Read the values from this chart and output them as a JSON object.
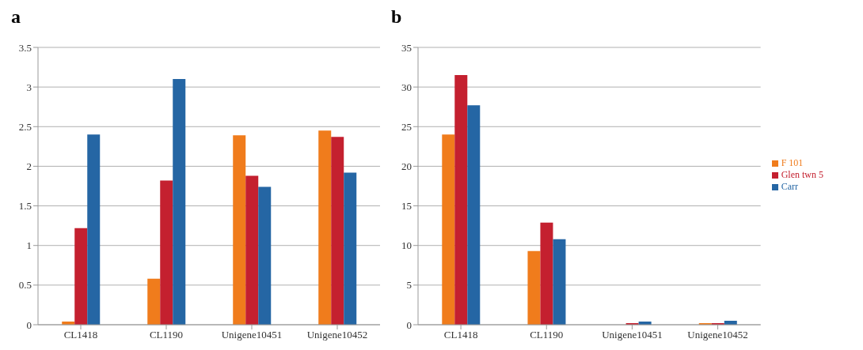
{
  "chart_data": [
    {
      "type": "bar",
      "title": "a",
      "categories": [
        "CL1418",
        "CL1190",
        "Unigene10451",
        "Unigene10452"
      ],
      "series": [
        {
          "color": "#f07c1c",
          "values": [
            0.04,
            0.58,
            2.39,
            2.45
          ]
        },
        {
          "color": "#c4202f",
          "values": [
            1.22,
            1.82,
            1.88,
            2.37
          ]
        },
        {
          "color": "#2566a4",
          "values": [
            2.4,
            3.1,
            1.74,
            1.92
          ]
        }
      ],
      "ylim": [
        0,
        3.5
      ],
      "yticks": [
        0,
        0.5,
        1,
        1.5,
        2,
        2.5,
        3,
        3.5
      ],
      "grid": "y",
      "legend": false
    },
    {
      "type": "bar",
      "title": "b",
      "categories": [
        "CL1418",
        "CL1190",
        "Unigene10451",
        "Unigene10452"
      ],
      "series": [
        {
          "name": "F 101",
          "color": "#f07c1c",
          "values": [
            24,
            9.3,
            null,
            0.2
          ]
        },
        {
          "name": "Glen twn 5",
          "color": "#c4202f",
          "values": [
            31.5,
            12.9,
            0.2,
            0.2
          ]
        },
        {
          "name": "Carr",
          "color": "#2566a4",
          "values": [
            27.7,
            10.8,
            0.4,
            0.5
          ]
        }
      ],
      "ylim": [
        0,
        35
      ],
      "yticks": [
        0,
        5,
        10,
        15,
        20,
        25,
        30,
        35
      ],
      "grid": "y",
      "legend": "right"
    }
  ]
}
